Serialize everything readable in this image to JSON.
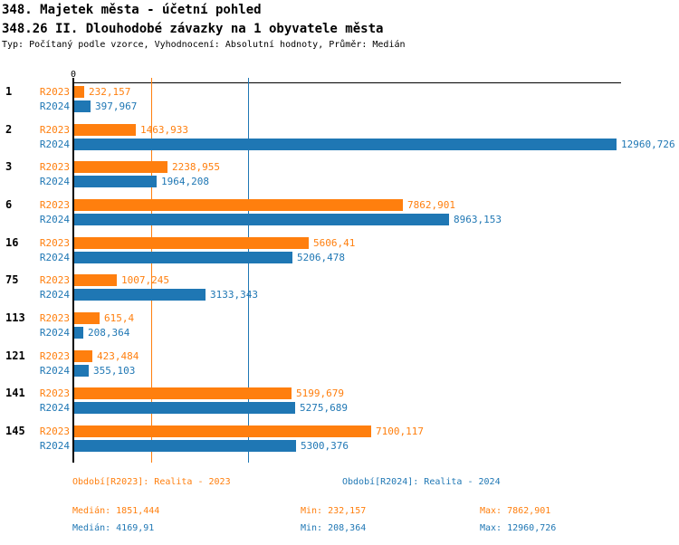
{
  "header": {
    "title": "348. Majetek města - účetní pohled",
    "subtitle": "348.26 II. Dlouhodobé závazky na 1 obyvatele města",
    "meta": "Typ: Počítaný podle vzorce, Vyhodnocení: Absolutní hodnoty, Průměr: Medián"
  },
  "chart_data": {
    "type": "bar",
    "orientation": "horizontal",
    "title": "348.26 II. Dlouhodobé závazky na 1 obyvatele města",
    "xlabel": "",
    "ylabel": "",
    "x_axis": {
      "zero_label": "0",
      "approx_max": 13090,
      "grid": "median-lines-only"
    },
    "legend_position": "bottom",
    "categories": [
      "1",
      "2",
      "3",
      "6",
      "16",
      "75",
      "113",
      "121",
      "141",
      "145"
    ],
    "series": [
      {
        "name": "R2023",
        "color": "#ff7f0e",
        "values": [
          232.157,
          1463.933,
          2238.955,
          7862.901,
          5606.41,
          1007.245,
          615.4,
          423.484,
          5199.679,
          7100.117
        ],
        "display": [
          "232,157",
          "1463,933",
          "2238,955",
          "7862,901",
          "5606,41",
          "1007,245",
          "615,4",
          "423,484",
          "5199,679",
          "7100,117"
        ]
      },
      {
        "name": "R2024",
        "color": "#1f77b4",
        "values": [
          397.967,
          12960.726,
          1964.208,
          8963.153,
          5206.478,
          3133.343,
          208.364,
          355.103,
          5275.689,
          5300.376
        ],
        "display": [
          "397,967",
          "12960,726",
          "1964,208",
          "8963,153",
          "5206,478",
          "3133,343",
          "208,364",
          "355,103",
          "5275,689",
          "5300,376"
        ]
      }
    ],
    "median_lines": [
      {
        "series": "R2023",
        "value": 1851.444,
        "color": "#ff7f0e"
      },
      {
        "series": "R2024",
        "value": 4169.91,
        "color": "#1f77b4"
      }
    ]
  },
  "footer": {
    "legend": [
      {
        "label": "Období[R2023]: Realita - 2023",
        "color": "#ff7f0e"
      },
      {
        "label": "Období[R2024]: Realita - 2024",
        "color": "#1f77b4"
      }
    ],
    "stats": [
      {
        "median": "Medián: 1851,444",
        "min": "Min: 232,157",
        "max": "Max: 7862,901",
        "color": "#ff7f0e"
      },
      {
        "median": "Medián: 4169,91",
        "min": "Min: 208,364",
        "max": "Max: 12960,726",
        "color": "#1f77b4"
      }
    ]
  }
}
